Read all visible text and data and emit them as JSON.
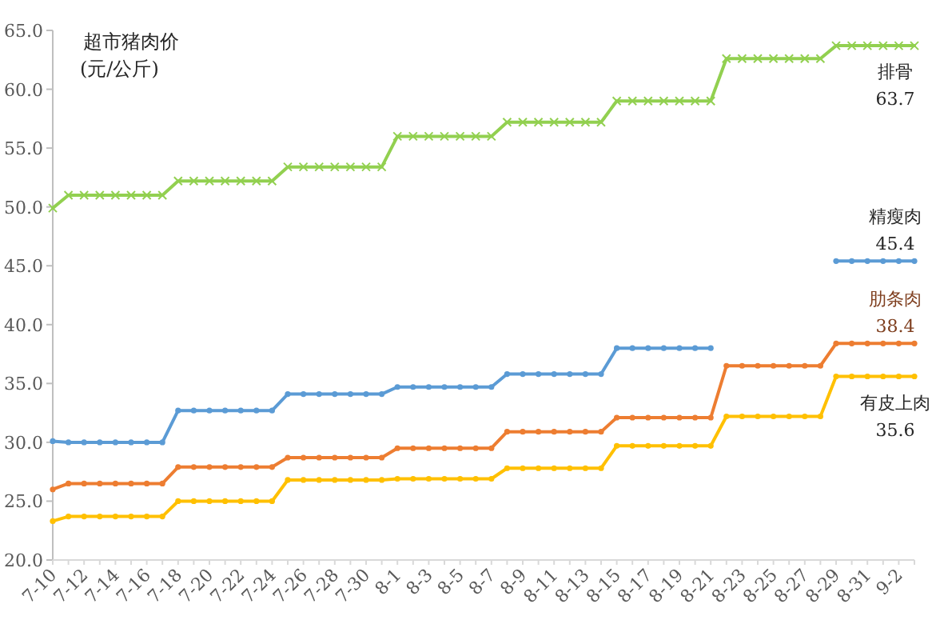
{
  "chart_data": {
    "type": "line",
    "title": "超市猪肉价",
    "subtitle": "(元/公斤)",
    "categories": [
      "7-10",
      null,
      "7-12",
      null,
      "7-14",
      null,
      "7-16",
      null,
      "7-18",
      null,
      "7-20",
      null,
      "7-22",
      null,
      "7-24",
      null,
      "7-26",
      null,
      "7-28",
      null,
      "7-30",
      null,
      "8-1",
      null,
      "8-3",
      null,
      "8-5",
      null,
      "8-7",
      null,
      "8-9",
      null,
      "8-11",
      null,
      "8-13",
      null,
      "8-15",
      null,
      "8-17",
      null,
      "8-19",
      null,
      "8-21",
      null,
      "8-23",
      null,
      "8-25",
      null,
      "8-27",
      null,
      "8-29",
      null,
      "8-31",
      null,
      "9-2",
      null
    ],
    "ylim": [
      20,
      65
    ],
    "yticks": [
      {
        "value": 20,
        "label": "20.0"
      },
      {
        "value": 25,
        "label": "25.0"
      },
      {
        "value": 30,
        "label": "30.0"
      },
      {
        "value": 35,
        "label": "35.0"
      },
      {
        "value": 40,
        "label": "40.0"
      },
      {
        "value": 45,
        "label": "45.0"
      },
      {
        "value": 50,
        "label": "50.0"
      },
      {
        "value": 55,
        "label": "55.0"
      },
      {
        "value": 60,
        "label": "60.0"
      },
      {
        "value": 65,
        "label": "65.0"
      }
    ],
    "grid": false,
    "series": [
      {
        "name": "排骨",
        "color": "#92d050",
        "marker": "cross",
        "values": [
          49.9,
          51.0,
          51.0,
          51.0,
          51.0,
          51.0,
          51.0,
          51.0,
          52.2,
          52.2,
          52.2,
          52.2,
          52.2,
          52.2,
          52.2,
          53.4,
          53.4,
          53.4,
          53.4,
          53.4,
          53.4,
          53.4,
          56.0,
          56.0,
          56.0,
          56.0,
          56.0,
          56.0,
          56.0,
          57.2,
          57.2,
          57.2,
          57.2,
          57.2,
          57.2,
          57.2,
          59.0,
          59.0,
          59.0,
          59.0,
          59.0,
          59.0,
          59.0,
          62.6,
          62.6,
          62.6,
          62.6,
          62.6,
          62.6,
          62.6,
          63.7,
          63.7,
          63.7,
          63.7,
          63.7,
          63.7
        ],
        "value_labels": [
          null,
          null,
          null,
          null,
          null,
          null,
          null,
          null,
          null,
          null,
          null,
          null,
          null,
          null,
          null,
          null,
          null,
          null,
          null,
          null,
          null,
          null,
          null,
          null,
          null,
          null,
          null,
          null,
          null,
          null,
          null,
          null,
          null,
          null,
          null,
          null,
          null,
          null,
          null,
          null,
          null,
          null,
          null,
          null,
          null,
          null,
          null,
          null,
          null,
          null,
          null,
          null,
          null,
          null,
          null,
          "63.7"
        ]
      },
      {
        "name": "精瘦肉",
        "color": "#5b9bd5",
        "marker": "circle",
        "values": [
          30.1,
          30.0,
          30.0,
          30.0,
          30.0,
          30.0,
          30.0,
          30.0,
          32.7,
          32.7,
          32.7,
          32.7,
          32.7,
          32.7,
          32.7,
          34.1,
          34.1,
          34.1,
          34.1,
          34.1,
          34.1,
          34.1,
          34.7,
          34.7,
          34.7,
          34.7,
          34.7,
          34.7,
          34.7,
          35.8,
          35.8,
          35.8,
          35.8,
          35.8,
          35.8,
          35.8,
          38.0,
          38.0,
          38.0,
          38.0,
          38.0,
          38.0,
          38.0,
          null,
          null,
          null,
          null,
          null,
          null,
          null,
          45.4,
          45.4,
          45.4,
          45.4,
          45.4,
          45.4
        ],
        "value_labels": [
          null,
          null,
          null,
          null,
          null,
          null,
          null,
          null,
          null,
          null,
          null,
          null,
          null,
          null,
          null,
          null,
          null,
          null,
          null,
          null,
          null,
          null,
          null,
          null,
          null,
          null,
          null,
          null,
          null,
          null,
          null,
          null,
          null,
          null,
          null,
          null,
          null,
          null,
          null,
          null,
          null,
          null,
          null,
          null,
          null,
          null,
          null,
          null,
          null,
          null,
          null,
          null,
          null,
          null,
          null,
          "45.4"
        ]
      },
      {
        "name": "肋条肉",
        "color": "#ed7d31",
        "marker": "circle",
        "values": [
          26.0,
          26.5,
          26.5,
          26.5,
          26.5,
          26.5,
          26.5,
          26.5,
          27.9,
          27.9,
          27.9,
          27.9,
          27.9,
          27.9,
          27.9,
          28.7,
          28.7,
          28.7,
          28.7,
          28.7,
          28.7,
          28.7,
          29.5,
          29.5,
          29.5,
          29.5,
          29.5,
          29.5,
          29.5,
          30.9,
          30.9,
          30.9,
          30.9,
          30.9,
          30.9,
          30.9,
          32.1,
          32.1,
          32.1,
          32.1,
          32.1,
          32.1,
          32.1,
          36.5,
          36.5,
          36.5,
          36.5,
          36.5,
          36.5,
          36.5,
          38.4,
          38.4,
          38.4,
          38.4,
          38.4,
          38.4
        ],
        "value_labels": [
          null,
          null,
          null,
          null,
          null,
          null,
          null,
          null,
          null,
          null,
          null,
          null,
          null,
          null,
          null,
          null,
          null,
          null,
          null,
          null,
          null,
          null,
          null,
          null,
          null,
          null,
          null,
          null,
          null,
          null,
          null,
          null,
          null,
          null,
          null,
          null,
          null,
          null,
          null,
          null,
          null,
          null,
          null,
          null,
          null,
          null,
          null,
          null,
          null,
          null,
          null,
          null,
          null,
          null,
          null,
          "38.4"
        ]
      },
      {
        "name": "有皮上肉",
        "color": "#ffc000",
        "marker": "circle",
        "values": [
          23.3,
          23.7,
          23.7,
          23.7,
          23.7,
          23.7,
          23.7,
          23.7,
          25.0,
          25.0,
          25.0,
          25.0,
          25.0,
          25.0,
          25.0,
          26.8,
          26.8,
          26.8,
          26.8,
          26.8,
          26.8,
          26.8,
          26.9,
          26.9,
          26.9,
          26.9,
          26.9,
          26.9,
          26.9,
          27.8,
          27.8,
          27.8,
          27.8,
          27.8,
          27.8,
          27.8,
          29.7,
          29.7,
          29.7,
          29.7,
          29.7,
          29.7,
          29.7,
          32.2,
          32.2,
          32.2,
          32.2,
          32.2,
          32.2,
          32.2,
          35.6,
          35.6,
          35.6,
          35.6,
          35.6,
          35.6
        ],
        "value_labels": [
          null,
          null,
          null,
          null,
          null,
          null,
          null,
          null,
          null,
          null,
          null,
          null,
          null,
          null,
          null,
          null,
          null,
          null,
          null,
          null,
          null,
          null,
          null,
          null,
          null,
          null,
          null,
          null,
          null,
          null,
          null,
          null,
          null,
          null,
          null,
          null,
          null,
          null,
          null,
          null,
          null,
          null,
          null,
          null,
          null,
          null,
          null,
          null,
          null,
          null,
          null,
          null,
          null,
          null,
          null,
          "35.6"
        ]
      }
    ]
  }
}
